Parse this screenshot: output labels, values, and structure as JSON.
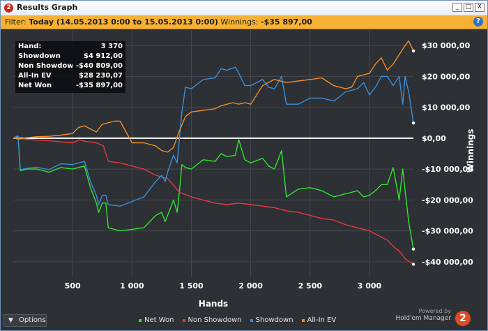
{
  "window": {
    "title": "Results Graph",
    "app_icon_text": "2",
    "buttons": {
      "minimize": "_",
      "maximize": "□",
      "close": "X"
    }
  },
  "filter": {
    "prefix": "Filter:",
    "value": "Today (14.05.2013 0:00 to 15.05.2013 0:00)",
    "winnings_label": "Winnings:",
    "winnings_value": "-$35 897,00",
    "help": "?"
  },
  "stats": [
    {
      "label": "Hand:",
      "value": "3 370"
    },
    {
      "label": "Showdown",
      "value": "$4 912,00"
    },
    {
      "label": "Non Showdown",
      "value": "-$40 809,00"
    },
    {
      "label": "All-In EV",
      "value": "$28 230,07"
    },
    {
      "label": "Net Won",
      "value": "-$35 897,00"
    }
  ],
  "footer": {
    "options_label": "Options",
    "powered_line1": "Powered by",
    "powered_line2": "Hold'em Manager",
    "logo_text": "2"
  },
  "colors": {
    "background": "#2d3035",
    "grid": "#454950",
    "zero_line": "#ffffff",
    "net_won": "#2ee62e",
    "non_showdown": "#e63a3a",
    "showdown": "#3b8fd9",
    "all_in_ev": "#f08c28"
  },
  "chart_data": {
    "type": "line",
    "xlabel": "Hands",
    "ylabel": "Winnings",
    "xlim": [
      0,
      3370
    ],
    "ylim": [
      -45000,
      35000
    ],
    "x_ticks": [
      500,
      1000,
      1500,
      2000,
      2500,
      3000
    ],
    "x_tick_labels": [
      "500",
      "1 000",
      "1 500",
      "2 000",
      "2 500",
      "3 000"
    ],
    "y_ticks": [
      -40000,
      -30000,
      -20000,
      -10000,
      0,
      10000,
      20000,
      30000
    ],
    "y_tick_labels": [
      "-$40 000,00",
      "-$30 000,00",
      "-$20 000,00",
      "-$10 000,00",
      "$0,00",
      "$10 000,00",
      "$20 000,00",
      "$30 000,00"
    ],
    "grid": true,
    "legend_position": "bottom-center",
    "series": [
      {
        "name": "Net Won",
        "color": "#2ee62e",
        "x": [
          0,
          40,
          60,
          120,
          200,
          300,
          400,
          500,
          600,
          650,
          700,
          720,
          750,
          780,
          800,
          900,
          1000,
          1100,
          1200,
          1250,
          1280,
          1300,
          1350,
          1380,
          1400,
          1420,
          1450,
          1500,
          1600,
          1700,
          1750,
          1800,
          1870,
          1900,
          1950,
          2000,
          2100,
          2150,
          2200,
          2260,
          2300,
          2400,
          2500,
          2600,
          2700,
          2800,
          2900,
          2950,
          3000,
          3050,
          3100,
          3150,
          3200,
          3250,
          3280,
          3300,
          3330,
          3370
        ],
        "y": [
          0,
          500,
          -10500,
          -10000,
          -10000,
          -11000,
          -9500,
          -10000,
          -9000,
          -16000,
          -21000,
          -24000,
          -21000,
          -21000,
          -29000,
          -30000,
          -29500,
          -29000,
          -25000,
          -24000,
          -27000,
          -25000,
          -20000,
          -24000,
          -17000,
          -8500,
          -9500,
          -10000,
          -7000,
          -7500,
          -5000,
          -6000,
          -5500,
          -500,
          -7000,
          -8000,
          -6500,
          -9000,
          -10000,
          -4000,
          -19000,
          -16500,
          -16000,
          -17000,
          -19000,
          -18000,
          -17000,
          -19000,
          -18500,
          -17000,
          -15000,
          -15000,
          -9500,
          -20000,
          -10000,
          -17000,
          -27000,
          -35897
        ]
      },
      {
        "name": "Non Showdown",
        "color": "#e63a3a",
        "x": [
          0,
          100,
          200,
          300,
          400,
          500,
          560,
          600,
          700,
          760,
          800,
          900,
          1000,
          1100,
          1200,
          1300,
          1400,
          1500,
          1600,
          1700,
          1800,
          1900,
          2000,
          2100,
          2200,
          2300,
          2400,
          2500,
          2600,
          2700,
          2800,
          2900,
          3000,
          3100,
          3150,
          3200,
          3250,
          3300,
          3370
        ],
        "y": [
          0,
          -300,
          -600,
          -800,
          -1200,
          -1500,
          -500,
          -1000,
          -1500,
          -2500,
          -7500,
          -8000,
          -9000,
          -10000,
          -12000,
          -13000,
          -17500,
          -19000,
          -20000,
          -21000,
          -21500,
          -21000,
          -21500,
          -22000,
          -22500,
          -23500,
          -24000,
          -25000,
          -26000,
          -26500,
          -28000,
          -29000,
          -30000,
          -32000,
          -33000,
          -35000,
          -36500,
          -39000,
          -40809
        ]
      },
      {
        "name": "Showdown",
        "color": "#3b8fd9",
        "x": [
          0,
          40,
          60,
          120,
          200,
          300,
          400,
          500,
          600,
          650,
          700,
          720,
          750,
          780,
          800,
          900,
          1000,
          1100,
          1200,
          1250,
          1280,
          1300,
          1350,
          1380,
          1400,
          1420,
          1450,
          1500,
          1600,
          1700,
          1750,
          1800,
          1870,
          1900,
          1950,
          2000,
          2100,
          2150,
          2200,
          2260,
          2300,
          2400,
          2500,
          2600,
          2700,
          2800,
          2900,
          2950,
          3000,
          3050,
          3100,
          3150,
          3200,
          3250,
          3280,
          3300,
          3330,
          3370
        ],
        "y": [
          0,
          800,
          -10200,
          -9700,
          -9400,
          -10200,
          -8300,
          -8500,
          -7500,
          -14000,
          -18500,
          -21500,
          -18500,
          -18500,
          -21500,
          -22000,
          -20500,
          -19000,
          -14000,
          -12000,
          -14000,
          -11000,
          -5500,
          -8000,
          200,
          8500,
          16500,
          16000,
          19000,
          19500,
          22500,
          22000,
          23000,
          21000,
          17000,
          17000,
          19000,
          16500,
          16000,
          20000,
          11000,
          11000,
          13000,
          13000,
          12000,
          15000,
          16000,
          18000,
          14000,
          16500,
          20000,
          20000,
          17000,
          20000,
          11000,
          20000,
          15000,
          4912
        ]
      },
      {
        "name": "All-In EV",
        "color": "#f08c28",
        "x": [
          0,
          50,
          100,
          200,
          300,
          400,
          500,
          550,
          600,
          650,
          700,
          750,
          800,
          850,
          900,
          1000,
          1100,
          1200,
          1250,
          1300,
          1350,
          1400,
          1450,
          1500,
          1600,
          1700,
          1750,
          1800,
          1850,
          1900,
          1950,
          2000,
          2100,
          2200,
          2300,
          2400,
          2500,
          2600,
          2700,
          2800,
          2850,
          2900,
          3000,
          3050,
          3100,
          3150,
          3200,
          3250,
          3300,
          3330,
          3370
        ],
        "y": [
          0,
          -300,
          100,
          500,
          600,
          1000,
          1500,
          3500,
          4000,
          3000,
          2000,
          4500,
          5000,
          5500,
          5500,
          -1500,
          -1500,
          -2500,
          -4000,
          -4500,
          -3000,
          2500,
          7000,
          8500,
          9000,
          9500,
          10500,
          11000,
          11500,
          11000,
          11500,
          11000,
          17000,
          19000,
          18000,
          18500,
          19000,
          19500,
          17000,
          16000,
          16500,
          20000,
          21000,
          24000,
          26000,
          22000,
          24000,
          27000,
          30000,
          31500,
          28230
        ]
      }
    ]
  }
}
